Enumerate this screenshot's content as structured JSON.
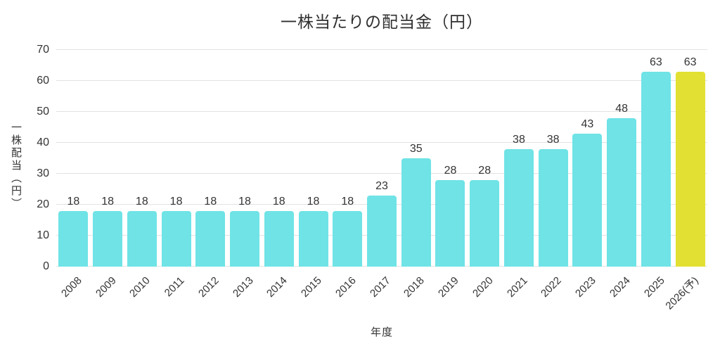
{
  "page": {
    "background": "#ffffff"
  },
  "chart_data": {
    "type": "bar",
    "title": "一株当たりの配当金（円）",
    "xlabel": "年度",
    "ylabel": "一株配当（円）",
    "categories": [
      "2008",
      "2009",
      "2010",
      "2011",
      "2012",
      "2013",
      "2014",
      "2015",
      "2016",
      "2017",
      "2018",
      "2019",
      "2020",
      "2021",
      "2022",
      "2023",
      "2024",
      "2025",
      "2026(予)"
    ],
    "values": [
      18,
      18,
      18,
      18,
      18,
      18,
      18,
      18,
      18,
      23,
      35,
      28,
      28,
      38,
      38,
      43,
      48,
      63,
      63
    ],
    "value_labels": [
      "18",
      "18",
      "18",
      "18",
      "18",
      "18",
      "18",
      "18",
      "18",
      "23",
      "35",
      "28",
      "28",
      "38",
      "38",
      "43",
      "48",
      "63",
      "63"
    ],
    "ylim": [
      0,
      70
    ],
    "yticks": [
      0,
      10,
      20,
      30,
      40,
      50,
      60,
      70
    ],
    "grid": true,
    "legend": "none",
    "bar_color": "#6fe3e6",
    "highlight_color": "#e2e032",
    "highlight_index": 18,
    "gridline_color": "#e2e2e2",
    "text_color": "#333333"
  }
}
